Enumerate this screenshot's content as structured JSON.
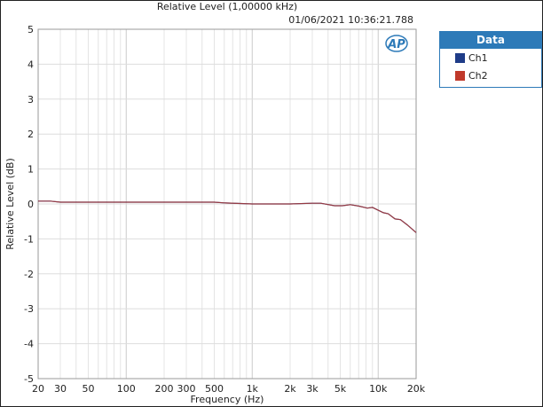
{
  "chart_data": {
    "type": "line",
    "title": "Relative Level (1,00000 kHz)",
    "timestamp": "01/06/2021 10:36:21.788",
    "xlabel": "Frequency (Hz)",
    "ylabel": "Relative Level (dB)",
    "xscale": "log",
    "xlim": [
      20,
      20000
    ],
    "ylim": [
      -5,
      5
    ],
    "grid": true,
    "xticks": [
      {
        "v": 20,
        "l": "20"
      },
      {
        "v": 30,
        "l": "30"
      },
      {
        "v": 50,
        "l": "50"
      },
      {
        "v": 100,
        "l": "100"
      },
      {
        "v": 200,
        "l": "200"
      },
      {
        "v": 300,
        "l": "300"
      },
      {
        "v": 500,
        "l": "500"
      },
      {
        "v": 1000,
        "l": "1k"
      },
      {
        "v": 2000,
        "l": "2k"
      },
      {
        "v": 3000,
        "l": "3k"
      },
      {
        "v": 5000,
        "l": "5k"
      },
      {
        "v": 10000,
        "l": "10k"
      },
      {
        "v": 20000,
        "l": "20k"
      }
    ],
    "yticks": [
      5,
      4,
      3,
      2,
      1,
      0,
      -1,
      -2,
      -3,
      -4,
      -5
    ],
    "legend": {
      "title": "Data",
      "position": "right-outside"
    },
    "series": [
      {
        "name": "Ch1",
        "color": "#1f3c88",
        "x": [
          20,
          25,
          30,
          50,
          100,
          200,
          500,
          600,
          1000,
          2000,
          3000,
          3500,
          4500,
          5200,
          6000,
          7000,
          8200,
          9000,
          11000,
          12000,
          13600,
          15000,
          17000,
          20000
        ],
        "y": [
          0.08,
          0.08,
          0.05,
          0.05,
          0.05,
          0.05,
          0.05,
          0.03,
          0.0,
          0.0,
          0.02,
          0.02,
          -0.05,
          -0.05,
          -0.02,
          -0.06,
          -0.12,
          -0.1,
          -0.25,
          -0.28,
          -0.43,
          -0.45,
          -0.6,
          -0.82
        ]
      },
      {
        "name": "Ch2",
        "color": "#c0392b",
        "x": [
          20,
          25,
          30,
          50,
          100,
          200,
          500,
          600,
          1000,
          2000,
          3000,
          3500,
          4500,
          5200,
          6000,
          7000,
          8200,
          9000,
          11000,
          12000,
          13600,
          15000,
          17000,
          20000
        ],
        "y": [
          0.08,
          0.08,
          0.05,
          0.05,
          0.05,
          0.05,
          0.05,
          0.03,
          0.0,
          0.0,
          0.02,
          0.02,
          -0.05,
          -0.05,
          -0.02,
          -0.06,
          -0.12,
          -0.1,
          -0.25,
          -0.28,
          -0.43,
          -0.45,
          -0.6,
          -0.82
        ]
      }
    ]
  }
}
